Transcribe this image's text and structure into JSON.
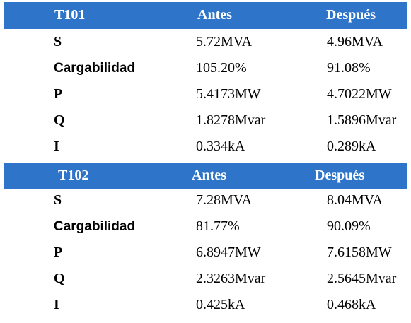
{
  "tables": [
    {
      "header": {
        "name": "T101",
        "before": "Antes",
        "after": "Después"
      },
      "rows": [
        {
          "label": "S",
          "before": "5.72MVA",
          "after": "4.96MVA"
        },
        {
          "label": "Cargabilidad",
          "before": "105.20%",
          "after": "91.08%"
        },
        {
          "label": "P",
          "before": "5.4173MW",
          "after": "4.7022MW"
        },
        {
          "label": "Q",
          "before": "1.8278Mvar",
          "after": "1.5896Mvar"
        },
        {
          "label": "I",
          "before": "0.334kA",
          "after": "0.289kA"
        }
      ]
    },
    {
      "header": {
        "name": "T102",
        "before": "Antes",
        "after": "Después"
      },
      "rows": [
        {
          "label": "S",
          "before": "7.28MVA",
          "after": "8.04MVA"
        },
        {
          "label": "Cargabilidad",
          "before": "81.77%",
          "after": "90.09%"
        },
        {
          "label": "P",
          "before": "6.8947MW",
          "after": "7.6158MW"
        },
        {
          "label": "Q",
          "before": "2.3263Mvar",
          "after": "2.5645Mvar"
        },
        {
          "label": "I",
          "before": "0.425kA",
          "after": "0.468kA"
        }
      ]
    }
  ],
  "colors": {
    "header_background": "#2e75c9",
    "header_text": "#ffffff"
  }
}
